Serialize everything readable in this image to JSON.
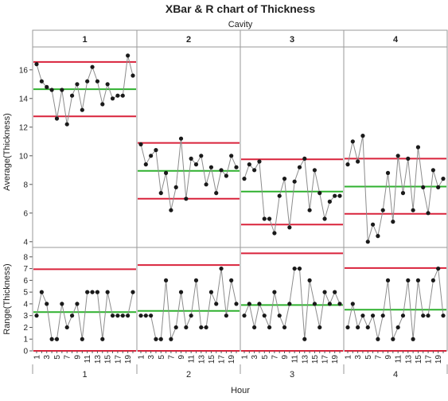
{
  "chart_data": {
    "type": "line",
    "title": "XBar & R chart of Thickness",
    "group_label": "Cavity",
    "xlabel": "Hour",
    "groups": [
      "1",
      "2",
      "3",
      "4"
    ],
    "x_ticks": [
      "1",
      "3",
      "5",
      "7",
      "9",
      "11",
      "13",
      "15",
      "17",
      "19"
    ],
    "x_axis_group_labels": [
      "1",
      "2",
      "3",
      "4"
    ],
    "top": {
      "ylabel": "Average(Thickness)",
      "ylim": [
        3.6,
        17.6
      ],
      "yticks": [
        "4",
        "6",
        "8",
        "10",
        "12",
        "14",
        "16"
      ],
      "series": [
        {
          "group": "1",
          "values": [
            16.4,
            15.2,
            14.8,
            14.6,
            12.6,
            14.6,
            12.2,
            14.2,
            15.0,
            13.2,
            15.2,
            16.2,
            15.2,
            13.6,
            15.0,
            14.0,
            14.2,
            14.2,
            17.0,
            15.6
          ],
          "center": 14.65,
          "ucl": 16.55,
          "lcl": 12.75
        },
        {
          "group": "2",
          "values": [
            10.8,
            9.4,
            10.0,
            10.4,
            7.4,
            8.8,
            6.2,
            7.8,
            11.2,
            7.0,
            9.8,
            9.4,
            10.0,
            8.0,
            9.2,
            7.4,
            9.0,
            8.6,
            10.0,
            9.2
          ],
          "center": 8.95,
          "ucl": 10.9,
          "lcl": 7.0
        },
        {
          "group": "3",
          "values": [
            8.4,
            9.4,
            9.0,
            9.6,
            5.6,
            5.6,
            4.6,
            7.2,
            8.4,
            5.0,
            8.2,
            9.2,
            9.8,
            6.2,
            9.0,
            7.4,
            5.6,
            6.8,
            7.2,
            7.2
          ],
          "center": 7.5,
          "ucl": 9.75,
          "lcl": 5.2
        },
        {
          "group": "4",
          "values": [
            9.4,
            11.0,
            9.6,
            11.4,
            4.0,
            5.2,
            4.4,
            6.2,
            8.8,
            5.4,
            10.0,
            7.4,
            9.8,
            6.2,
            10.6,
            7.8,
            6.0,
            9.0,
            7.8,
            8.4
          ],
          "center": 7.85,
          "ucl": 9.8,
          "lcl": 5.95
        }
      ]
    },
    "bottom": {
      "ylabel": "Range(Thickness)",
      "ylim": [
        0,
        8.8
      ],
      "yticks": [
        "0",
        "1",
        "2",
        "3",
        "4",
        "5",
        "6",
        "7",
        "8"
      ],
      "series": [
        {
          "group": "1",
          "values": [
            3,
            5,
            4,
            1,
            1,
            4,
            2,
            3,
            4,
            1,
            5,
            5,
            5,
            1,
            5,
            3,
            3,
            3,
            3,
            5
          ],
          "center": 3.3,
          "ucl": 6.95,
          "lcl": 0
        },
        {
          "group": "2",
          "values": [
            3,
            3,
            3,
            1,
            1,
            6,
            1,
            2,
            5,
            2,
            3,
            6,
            2,
            2,
            5,
            4,
            7,
            3,
            6,
            4
          ],
          "center": 3.4,
          "ucl": 7.3,
          "lcl": 0
        },
        {
          "group": "3",
          "values": [
            3,
            4,
            2,
            4,
            3,
            2,
            5,
            3,
            2,
            4,
            7,
            7,
            1,
            6,
            4,
            2,
            5,
            4,
            5,
            4
          ],
          "center": 3.9,
          "ucl": 8.3,
          "lcl": 0
        },
        {
          "group": "4",
          "values": [
            2,
            4,
            2,
            3,
            2,
            3,
            1,
            3,
            6,
            1,
            2,
            3,
            6,
            1,
            6,
            3,
            3,
            6,
            7,
            3
          ],
          "center": 3.5,
          "ucl": 7.05,
          "lcl": 0
        }
      ]
    },
    "colors": {
      "data_line": "#8c8c8c",
      "data_point": "#1a1a1a",
      "center_line": "#2fb12f",
      "limit_line": "#d9233b",
      "frame": "#9a9a9a",
      "header_bg": "#ffffff"
    }
  }
}
